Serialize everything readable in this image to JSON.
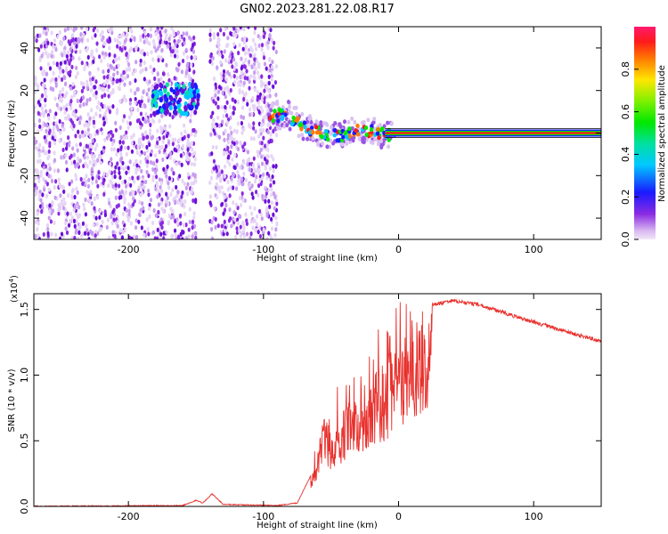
{
  "title": "GN02.2023.281.22.08.R17",
  "chart_data": [
    {
      "type": "heatmap",
      "xlabel": "Height of straight line (km)",
      "ylabel": "Frequency (Hz)",
      "xlim": [
        -270,
        150
      ],
      "ylim": [
        -50,
        50
      ],
      "x_ticks": [
        -200,
        -100,
        0,
        100
      ],
      "y_ticks": [
        -40,
        -20,
        0,
        20,
        40
      ],
      "colorbar": {
        "label": "Normalized spectral amplitude",
        "range": [
          0,
          1
        ],
        "ticks": [
          "0.0",
          "0.2",
          "0.4",
          "0.6",
          "0.8"
        ],
        "tick_values": [
          0,
          0.2,
          0.4,
          0.6,
          0.8
        ]
      },
      "features": {
        "noise_region_x": [
          -270,
          -90
        ],
        "gap_x": [
          -150,
          -140
        ],
        "blob_center": {
          "x": -165,
          "y": 16
        },
        "chirp_points": [
          {
            "x": -92,
            "y": 8
          },
          {
            "x": -85,
            "y": 9
          },
          {
            "x": -78,
            "y": 6
          },
          {
            "x": -70,
            "y": 3
          },
          {
            "x": -62,
            "y": 1
          },
          {
            "x": -55,
            "y": -1
          },
          {
            "x": -45,
            "y": -1
          },
          {
            "x": -38,
            "y": 0
          },
          {
            "x": -30,
            "y": 1
          },
          {
            "x": -22,
            "y": 1
          },
          {
            "x": -15,
            "y": 0
          },
          {
            "x": -8,
            "y": -1
          }
        ],
        "carrier_start_x": -10,
        "carrier_y": 0
      }
    },
    {
      "type": "line",
      "xlabel": "Height of straight line (km)",
      "ylabel": "SNR (10 * v/v)",
      "y_multiplier": "(x10",
      "y_multiplier_exp": "4",
      "y_multiplier_close": ")",
      "xlim": [
        -270,
        150
      ],
      "ylim": [
        0,
        1.62
      ],
      "x_ticks": [
        -200,
        -100,
        0,
        100
      ],
      "y_ticks": [
        "0.0",
        "0.5",
        "1.0",
        "1.5"
      ],
      "y_tick_values": [
        0,
        0.5,
        1.0,
        1.5
      ],
      "series": [
        {
          "color": "#e8302c",
          "envelope": [
            {
              "x": -270,
              "y": 0.005
            },
            {
              "x": -160,
              "y": 0.01
            },
            {
              "x": -150,
              "y": 0.05
            },
            {
              "x": -145,
              "y": 0.03
            },
            {
              "x": -138,
              "y": 0.1
            },
            {
              "x": -130,
              "y": 0.02
            },
            {
              "x": -90,
              "y": 0.01
            },
            {
              "x": -75,
              "y": 0.03
            },
            {
              "x": -62,
              "y": 0.3
            },
            {
              "x": -55,
              "y": 0.7
            },
            {
              "x": -48,
              "y": 0.55
            },
            {
              "x": -40,
              "y": 0.75
            },
            {
              "x": -30,
              "y": 0.85
            },
            {
              "x": -20,
              "y": 1.0
            },
            {
              "x": -10,
              "y": 1.1
            },
            {
              "x": 0,
              "y": 1.3
            },
            {
              "x": 10,
              "y": 1.45
            },
            {
              "x": 25,
              "y": 1.55
            },
            {
              "x": 40,
              "y": 1.58
            },
            {
              "x": 60,
              "y": 1.55
            },
            {
              "x": 90,
              "y": 1.45
            },
            {
              "x": 120,
              "y": 1.36
            },
            {
              "x": 150,
              "y": 1.27
            }
          ]
        }
      ]
    }
  ]
}
